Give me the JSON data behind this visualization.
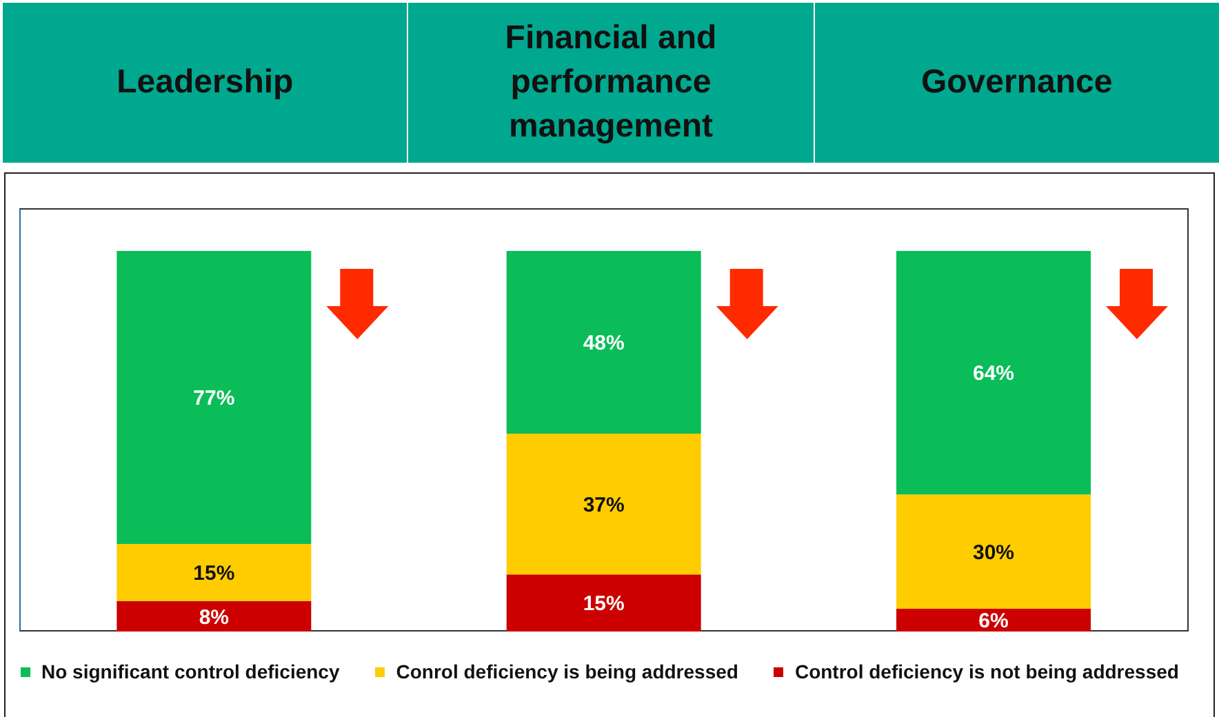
{
  "chart_data": {
    "type": "bar",
    "stacked": true,
    "legend": "bottom",
    "tick_labels": "x",
    "categories": [
      "Leadership",
      "Financial and performance management",
      "Governance"
    ],
    "series": [
      {
        "name": "Control deficiency is not being addressed",
        "color": "#cc0000",
        "values": [
          8,
          15,
          6
        ],
        "value_labels": [
          "8%",
          "15%",
          "6%"
        ]
      },
      {
        "name": "Conrol deficiency is being addressed",
        "color": "#ffcc00",
        "values": [
          15,
          37,
          30
        ],
        "value_labels": [
          "15%",
          "37%",
          "30%"
        ]
      },
      {
        "name": "No significant control deficiency",
        "color": "#0abd58",
        "values": [
          77,
          48,
          64
        ],
        "value_labels": [
          "77%",
          "48%",
          "64%"
        ]
      }
    ]
  }
}
